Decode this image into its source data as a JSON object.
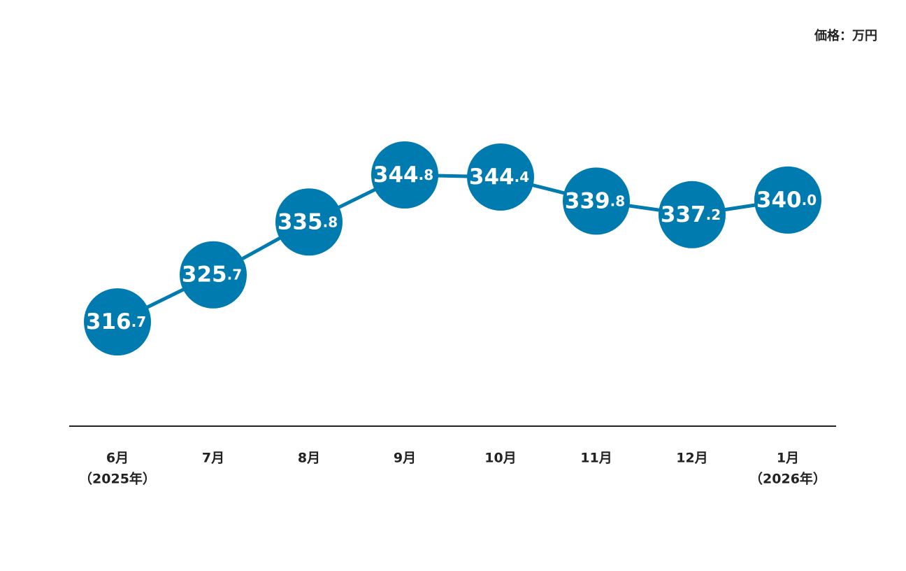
{
  "chart_data": {
    "type": "line",
    "unit_label": "価格：万円",
    "categories": [
      "6月",
      "7月",
      "8月",
      "9月",
      "10月",
      "11月",
      "12月",
      "1月"
    ],
    "sublabels": [
      "（2025年）",
      null,
      null,
      null,
      null,
      null,
      null,
      "（2026年）"
    ],
    "values": [
      316.7,
      325.7,
      335.8,
      344.8,
      344.4,
      339.8,
      337.2,
      340.0
    ],
    "value_labels": [
      "316.7",
      "325.7",
      "335.8",
      "344.8",
      "344.4",
      "339.8",
      "337.2",
      "340.0"
    ],
    "color": "#007bb0"
  }
}
